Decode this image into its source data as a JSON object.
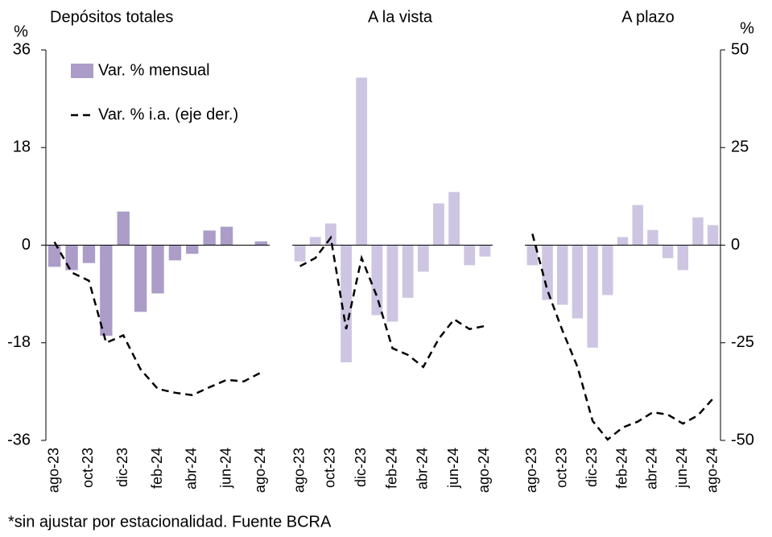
{
  "chart_data": [
    {
      "type": "bar",
      "title": "Depósitos totales",
      "ylabel": "%",
      "ylim": [
        -36,
        36
      ],
      "yticks": [
        -36,
        -18,
        0,
        18,
        36
      ],
      "legend": "upper left",
      "categories": [
        "ago-23",
        null,
        "oct-23",
        null,
        "dic-23",
        null,
        "feb-24",
        null,
        "abr-24",
        null,
        "jun-24",
        null,
        "ago-24"
      ],
      "series": [
        {
          "name": "Var. % mensual",
          "type": "bar",
          "color": "#ab9dc8",
          "values": [
            -4.0,
            -4.6,
            -3.3,
            -16.7,
            6.2,
            -12.3,
            -8.9,
            -2.8,
            -1.6,
            2.7,
            3.4,
            null,
            0.7
          ]
        },
        {
          "name": "Var. % i.a. (eje der.)",
          "type": "line",
          "axis": "y2",
          "color": "#000000",
          "linestyle": "dashed",
          "values": [
            0.8,
            -7.0,
            -9.1,
            -25.0,
            -23.1,
            -31.8,
            -36.8,
            -37.8,
            -38.4,
            -36.4,
            -34.5,
            -34.9,
            -32.6
          ]
        }
      ]
    },
    {
      "type": "bar",
      "title": "A la vista",
      "categories": [
        "ago-23",
        null,
        "oct-23",
        null,
        "dic-23",
        null,
        "feb-24",
        null,
        "abr-24",
        null,
        "jun-24",
        null,
        "ago-24"
      ],
      "series": [
        {
          "type": "bar",
          "color": "#cdc5e1",
          "values": [
            -3.0,
            1.5,
            4.0,
            -21.6,
            30.9,
            -12.9,
            -14.1,
            -9.7,
            -4.9,
            7.7,
            9.8,
            -3.7,
            -2.1
          ]
        },
        {
          "type": "line",
          "axis": "y2",
          "color": "#000000",
          "linestyle": "dashed",
          "values": [
            -5.4,
            -3.3,
            1.9,
            -21.5,
            -3.3,
            -13.2,
            -26.4,
            -28.1,
            -31.2,
            -24.0,
            -19.0,
            -21.5,
            -20.7
          ]
        }
      ]
    },
    {
      "type": "bar",
      "title": "A plazo",
      "y2label": "%",
      "y2lim": [
        -50,
        50
      ],
      "y2ticks": [
        -50,
        -25,
        0,
        25,
        50
      ],
      "categories": [
        "ago-23",
        null,
        "oct-23",
        null,
        "dic-23",
        null,
        "feb-24",
        null,
        "abr-24",
        null,
        "jun-24",
        null,
        "ago-24"
      ],
      "series": [
        {
          "type": "bar",
          "color": "#cdc5e1",
          "values": [
            -3.7,
            -10.1,
            -11.0,
            -13.5,
            -18.9,
            -9.2,
            1.5,
            7.4,
            2.8,
            -2.4,
            -4.6,
            5.1,
            3.7
          ]
        },
        {
          "type": "line",
          "axis": "y2",
          "color": "#000000",
          "linestyle": "dashed",
          "values": [
            2.9,
            -11.6,
            -21.9,
            -31.2,
            -45.0,
            -49.8,
            -46.7,
            -45.2,
            -42.8,
            -43.4,
            -45.7,
            -43.6,
            -39.3
          ]
        }
      ]
    }
  ],
  "footnote": "*sin ajustar por estacionalidad. Fuente BCRA"
}
